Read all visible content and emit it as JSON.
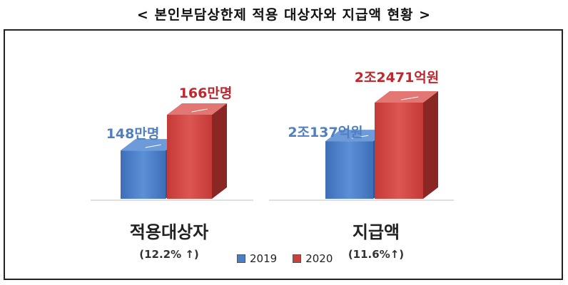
{
  "title": "< 본인부담상한제 적용 대상자와 지급액 현황 >",
  "colors": {
    "s2019": "#4a7ec5",
    "s2020": "#c9413e",
    "s2019_label": "#4f7fc0",
    "s2020_label": "#c0272d"
  },
  "chart_data": [
    {
      "type": "bar",
      "title": "",
      "categories": [
        "적용대상자"
      ],
      "category_note": "(12.2% ↑)",
      "unit": "만명",
      "series": [
        {
          "name": "2019",
          "values": [
            148
          ],
          "label": "148만명"
        },
        {
          "name": "2020",
          "values": [
            166
          ],
          "label": "166만명"
        }
      ]
    },
    {
      "type": "bar",
      "title": "",
      "categories": [
        "지급액"
      ],
      "category_note": "(11.6%↑)",
      "unit": "억원",
      "series": [
        {
          "name": "2019",
          "values": [
            20137
          ],
          "label": "2조137억원"
        },
        {
          "name": "2020",
          "values": [
            22471
          ],
          "label": "2조2471억원"
        }
      ]
    }
  ],
  "legend": {
    "items": [
      "2019",
      "2020"
    ],
    "position": "bottom-center"
  }
}
